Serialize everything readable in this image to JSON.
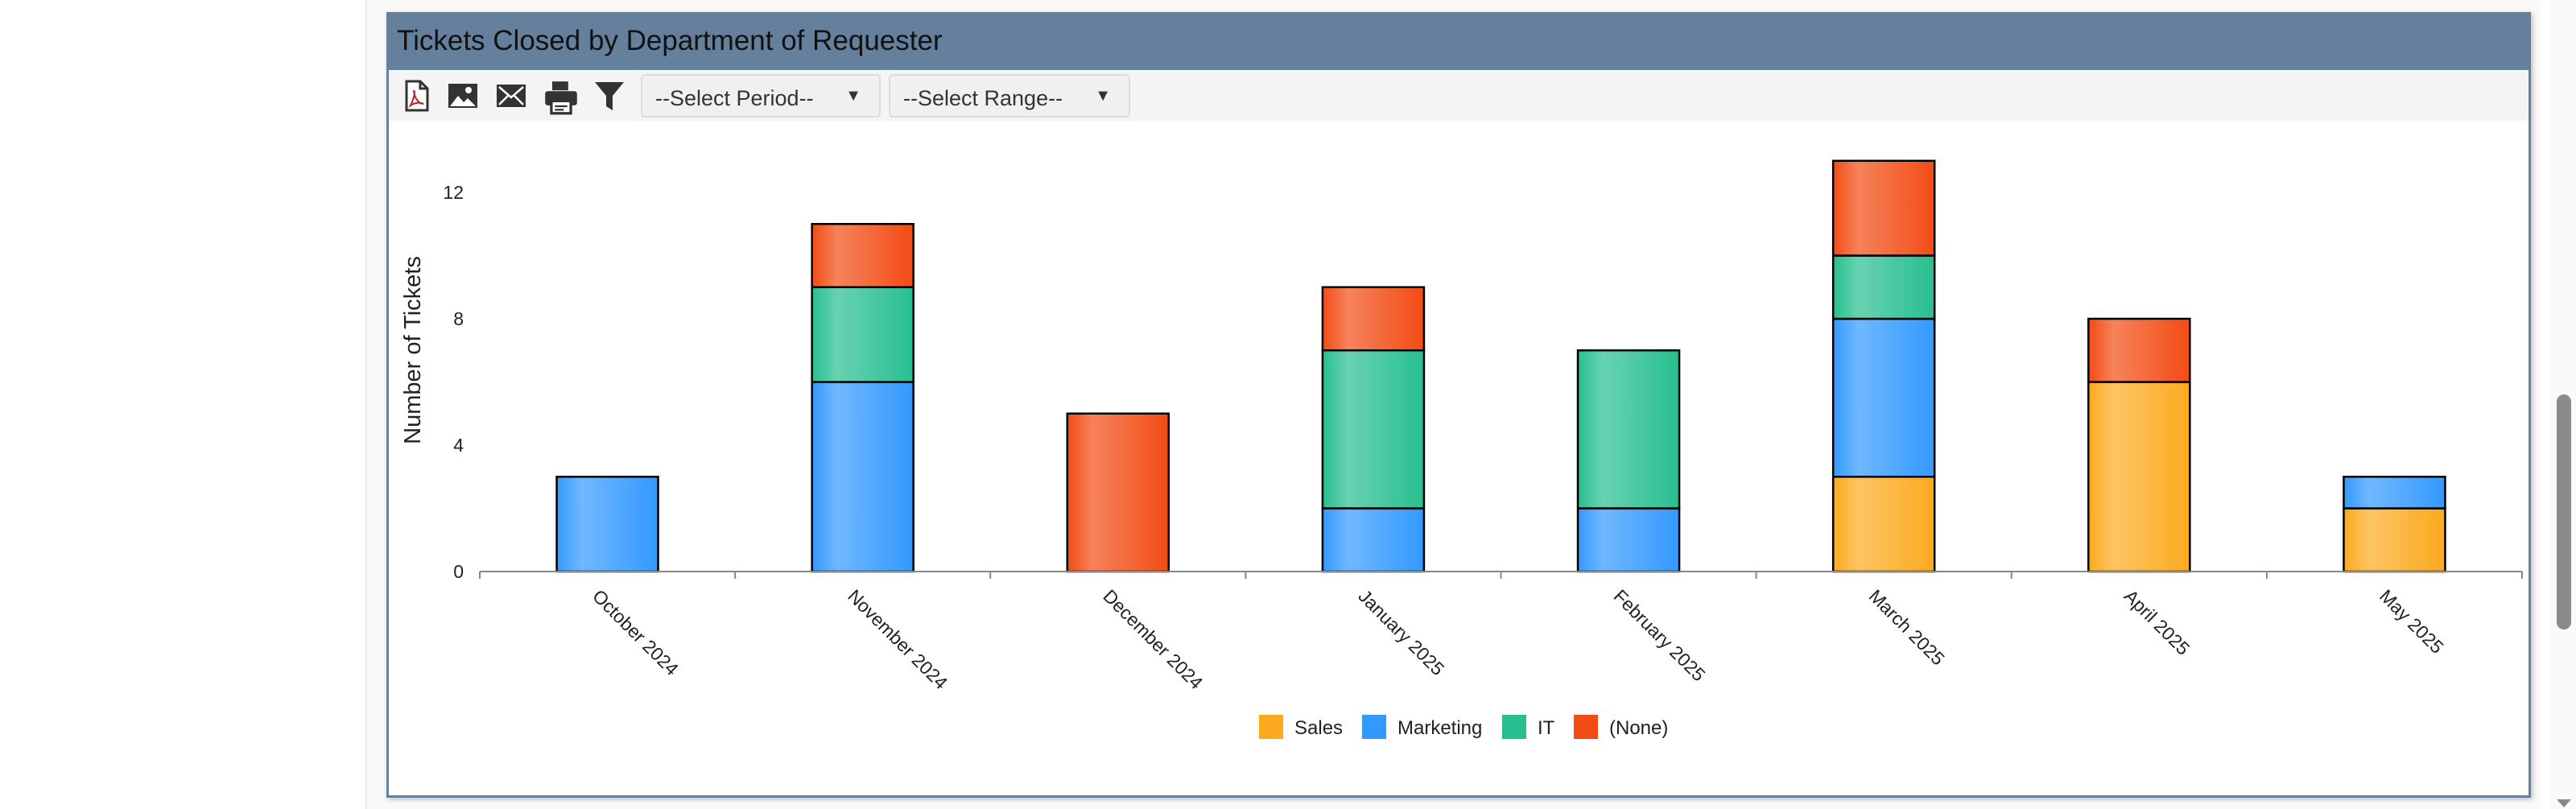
{
  "panel": {
    "title": "Tickets Closed by Department of Requester",
    "toolbar": {
      "icons": [
        "pdf-icon",
        "image-icon",
        "email-icon",
        "print-icon",
        "filter-icon"
      ],
      "period_select": "--Select Period--",
      "range_select": "--Select Range--"
    }
  },
  "colors": {
    "header": "#64809c",
    "Sales": "#fbaa1e",
    "Marketing": "#3399ff",
    "IT": "#27bf8f",
    "(None)": "#f24c14"
  },
  "chart_data": {
    "type": "bar",
    "stacked": true,
    "title": "",
    "xlabel": "",
    "ylabel": "Number of Tickets",
    "categories": [
      "October 2024",
      "November 2024",
      "December 2024",
      "January 2025",
      "February 2025",
      "March 2025",
      "April 2025",
      "May 2025"
    ],
    "yticks": [
      0,
      4,
      8,
      12
    ],
    "ylim": [
      0,
      13.5
    ],
    "grid": false,
    "legend_position": "bottom",
    "series": [
      {
        "name": "Sales",
        "color": "#fbaa1e",
        "values": [
          0,
          0,
          0,
          0,
          0,
          3,
          6,
          2
        ]
      },
      {
        "name": "Marketing",
        "color": "#3399ff",
        "values": [
          3,
          6,
          0,
          2,
          2,
          5,
          0,
          1
        ]
      },
      {
        "name": "IT",
        "color": "#27bf8f",
        "values": [
          0,
          3,
          0,
          5,
          5,
          2,
          0,
          0
        ]
      },
      {
        "name": "(None)",
        "color": "#f24c14",
        "values": [
          0,
          2,
          5,
          2,
          0,
          3,
          2,
          0
        ]
      }
    ]
  }
}
